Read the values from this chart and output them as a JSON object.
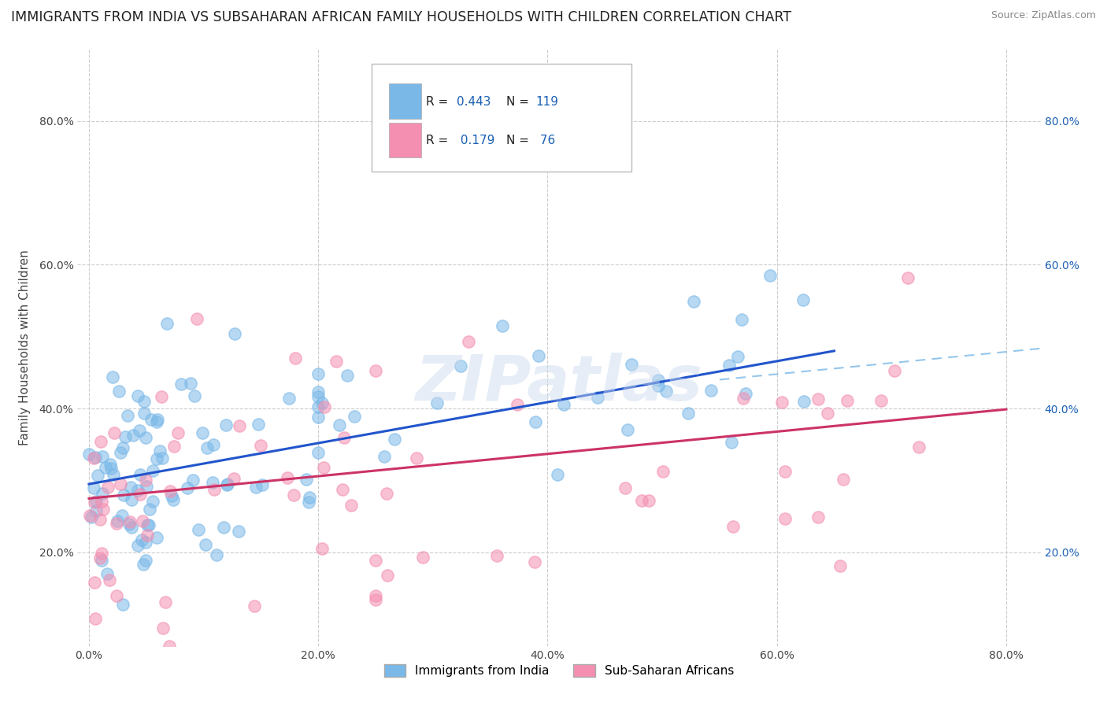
{
  "title": "IMMIGRANTS FROM INDIA VS SUBSAHARAN AFRICAN FAMILY HOUSEHOLDS WITH CHILDREN CORRELATION CHART",
  "source": "Source: ZipAtlas.com",
  "ylabel": "Family Households with Children",
  "x_tick_labels": [
    "0.0%",
    "20.0%",
    "40.0%",
    "60.0%",
    "80.0%"
  ],
  "x_tick_values": [
    0,
    20,
    40,
    60,
    80
  ],
  "y_tick_labels": [
    "20.0%",
    "40.0%",
    "60.0%",
    "80.0%"
  ],
  "y_tick_values": [
    20,
    40,
    60,
    80
  ],
  "xlim": [
    -1,
    83
  ],
  "ylim": [
    7,
    90
  ],
  "india_scatter_color": "#7ab8e8",
  "africa_scatter_color": "#f48fb1",
  "india_line_color": "#2255cc",
  "africa_line_color": "#cc3366",
  "watermark": "ZIPatlas",
  "india_R": 0.443,
  "india_N": 119,
  "africa_R": 0.179,
  "africa_N": 76,
  "india_slope": 0.285,
  "india_intercept": 29.5,
  "africa_slope": 0.155,
  "africa_intercept": 27.5,
  "grid_color": "#cccccc",
  "background_color": "#ffffff",
  "title_fontsize": 12.5,
  "axis_fontsize": 11,
  "tick_fontsize": 10,
  "legend_r_color": "#1a5fb4",
  "legend_n_color": "#1a5fb4",
  "legend_text_color": "#222222"
}
